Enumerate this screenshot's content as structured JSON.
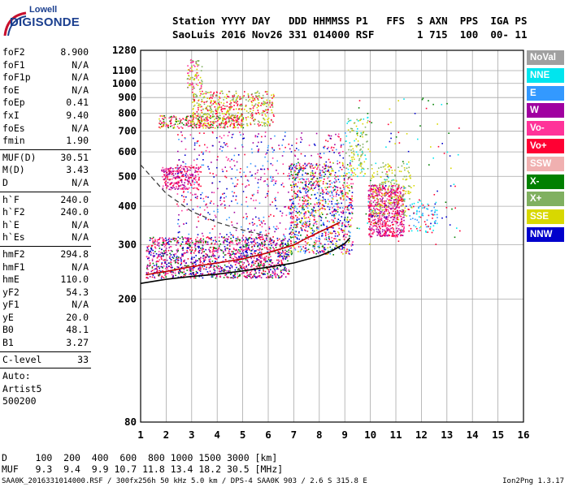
{
  "logo": {
    "top": "Lowell",
    "bottom": "DIGISONDE"
  },
  "header": {
    "line1": "Station YYYY DAY   DDD HHMMSS P1   FFS  S AXN  PPS  IGA PS",
    "line2": "SaoLuis 2016 Nov26 331 014000 RSF       1 715  100  00- 11"
  },
  "parameters": {
    "group1": [
      {
        "name": "foF2",
        "value": "8.900"
      },
      {
        "name": "foF1",
        "value": "N/A"
      },
      {
        "name": "foF1p",
        "value": "N/A"
      },
      {
        "name": "foE",
        "value": "N/A"
      },
      {
        "name": "foEp",
        "value": "0.41"
      },
      {
        "name": "fxI",
        "value": "9.40"
      },
      {
        "name": "foEs",
        "value": "N/A"
      },
      {
        "name": "fmin",
        "value": "1.90"
      }
    ],
    "group2": [
      {
        "name": "MUF(D)",
        "value": "30.51"
      },
      {
        "name": "M(D)",
        "value": "3.43"
      },
      {
        "name": "D",
        "value": "N/A"
      }
    ],
    "group3": [
      {
        "name": "h`F",
        "value": "240.0"
      },
      {
        "name": "h`F2",
        "value": "240.0"
      },
      {
        "name": "h`E",
        "value": "N/A"
      },
      {
        "name": "h`Es",
        "value": "N/A"
      }
    ],
    "group4": [
      {
        "name": "hmF2",
        "value": "294.8"
      },
      {
        "name": "hmF1",
        "value": "N/A"
      },
      {
        "name": "hmE",
        "value": "110.0"
      },
      {
        "name": "yF2",
        "value": "54.3"
      },
      {
        "name": "yF1",
        "value": "N/A"
      },
      {
        "name": "yE",
        "value": "20.0"
      },
      {
        "name": "B0",
        "value": "48.1"
      },
      {
        "name": "B1",
        "value": "3.27"
      }
    ],
    "group5": [
      {
        "name": "C-level",
        "value": "33"
      }
    ],
    "auto_lines": [
      "Auto:",
      "Artist5",
      "500200"
    ]
  },
  "legend": [
    {
      "label": "NoVal",
      "color": "#a0a0a0"
    },
    {
      "label": "NNE",
      "color": "#00e5ee"
    },
    {
      "label": "E",
      "color": "#3399ff"
    },
    {
      "label": "W",
      "color": "#a000a0"
    },
    {
      "label": "Vo-",
      "color": "#ff3399"
    },
    {
      "label": "Vo+",
      "color": "#ff0033"
    },
    {
      "label": "SSW",
      "color": "#f0b0b0"
    },
    {
      "label": "X-",
      "color": "#008000"
    },
    {
      "label": "X+",
      "color": "#80b060"
    },
    {
      "label": "SSE",
      "color": "#d8d800"
    },
    {
      "label": "NNW",
      "color": "#0000cc"
    }
  ],
  "bottom": {
    "line1": "D     100  200  400  600  800 1000 1500 3000 [km]",
    "line2": "MUF   9.3  9.4  9.9 10.7 11.8 13.4 18.2 30.5 [MHz]"
  },
  "footer": {
    "left": "SAA0K_2016331014000.RSF / 300fx256h 50 kHz 5.0 km / DPS-4 SAA0K 903 / 2.6 S 315.8 E",
    "right": "Ion2Png 1.3.17"
  },
  "chart_data": {
    "type": "scatter",
    "title": "",
    "xlabel": "",
    "ylabel": "",
    "xlim": [
      1,
      16
    ],
    "ylim": [
      80,
      1280
    ],
    "y_scale": "log",
    "x_ticks": [
      1,
      2,
      3,
      4,
      5,
      6,
      7,
      8,
      9,
      10,
      11,
      12,
      13,
      14,
      15,
      16
    ],
    "y_ticks": [
      80,
      200,
      300,
      400,
      500,
      600,
      700,
      800,
      900,
      1000,
      1100,
      1280
    ],
    "grid": true,
    "series": [
      {
        "name": "profile",
        "style": "solid-black-line",
        "x": [
          1,
          2,
          3,
          4,
          5,
          6,
          7,
          8,
          8.5,
          9,
          9.2
        ],
        "y": [
          225,
          232,
          237,
          241,
          247,
          254,
          262,
          276,
          287,
          303,
          316
        ]
      },
      {
        "name": "trace",
        "style": "solid-red-line",
        "x": [
          1.2,
          2,
          3,
          4,
          5,
          6,
          7,
          7.5,
          8,
          8.5,
          8.8
        ],
        "y": [
          240,
          246,
          255,
          262,
          270,
          283,
          300,
          315,
          330,
          345,
          355
        ]
      },
      {
        "name": "dashed",
        "style": "dashed-black-line",
        "x": [
          1,
          2,
          3,
          4,
          5,
          6
        ],
        "y": [
          545,
          440,
          385,
          355,
          335,
          320
        ]
      }
    ],
    "echo_clusters": [
      {
        "x": [
          1.2,
          6.8
        ],
        "y": [
          235,
          320
        ],
        "color_mix": [
          "#ff0033",
          "#ff3399",
          "#a000a0",
          "#008000",
          "#0000cc"
        ],
        "density": 1400
      },
      {
        "x": [
          6.8,
          9.3
        ],
        "y": [
          280,
          560
        ],
        "color_mix": [
          "#ff0033",
          "#0000cc",
          "#3399ff",
          "#008000",
          "#d8d800",
          "#ff3399"
        ],
        "density": 900
      },
      {
        "x": [
          1.8,
          3.3
        ],
        "y": [
          455,
          540
        ],
        "color_mix": [
          "#ff0033",
          "#ff3399",
          "#a000a0"
        ],
        "density": 260
      },
      {
        "x": [
          1.7,
          5.0
        ],
        "y": [
          720,
          790
        ],
        "color_mix": [
          "#ff3399",
          "#d8d800",
          "#ff0033",
          "#008000"
        ],
        "density": 300
      },
      {
        "x": [
          3.0,
          6.2
        ],
        "y": [
          730,
          950
        ],
        "color_mix": [
          "#d8d800",
          "#80b060",
          "#ff0033"
        ],
        "density": 500
      },
      {
        "x": [
          2.8,
          3.4
        ],
        "y": [
          960,
          1200
        ],
        "color_mix": [
          "#d8d800",
          "#80b060",
          "#ff3399"
        ],
        "density": 90
      },
      {
        "x": [
          2.4,
          9.0
        ],
        "y": [
          320,
          700
        ],
        "color_mix": [
          "#a000a0",
          "#ff0033",
          "#ff3399",
          "#0000cc",
          "#3399ff"
        ],
        "density": 650
      },
      {
        "x": [
          9.9,
          11.3
        ],
        "y": [
          320,
          470
        ],
        "color_mix": [
          "#ff0033",
          "#a000a0",
          "#ff3399"
        ],
        "density": 650
      },
      {
        "x": [
          10.0,
          11.6
        ],
        "y": [
          370,
          560
        ],
        "color_mix": [
          "#d8d800",
          "#80b060"
        ],
        "density": 200
      },
      {
        "x": [
          11.4,
          12.6
        ],
        "y": [
          330,
          420
        ],
        "color_mix": [
          "#00e5ee",
          "#3399ff",
          "#ff0033"
        ],
        "density": 80
      },
      {
        "x": [
          9.0,
          9.9
        ],
        "y": [
          500,
          780
        ],
        "color_mix": [
          "#d8d800",
          "#80b060",
          "#00e5ee"
        ],
        "density": 120
      },
      {
        "x": [
          9.4,
          13.5
        ],
        "y": [
          300,
          900
        ],
        "color_mix": [
          "#00e5ee",
          "#008000",
          "#ff0033",
          "#d8d800",
          "#0000cc"
        ],
        "density": 110
      }
    ]
  }
}
